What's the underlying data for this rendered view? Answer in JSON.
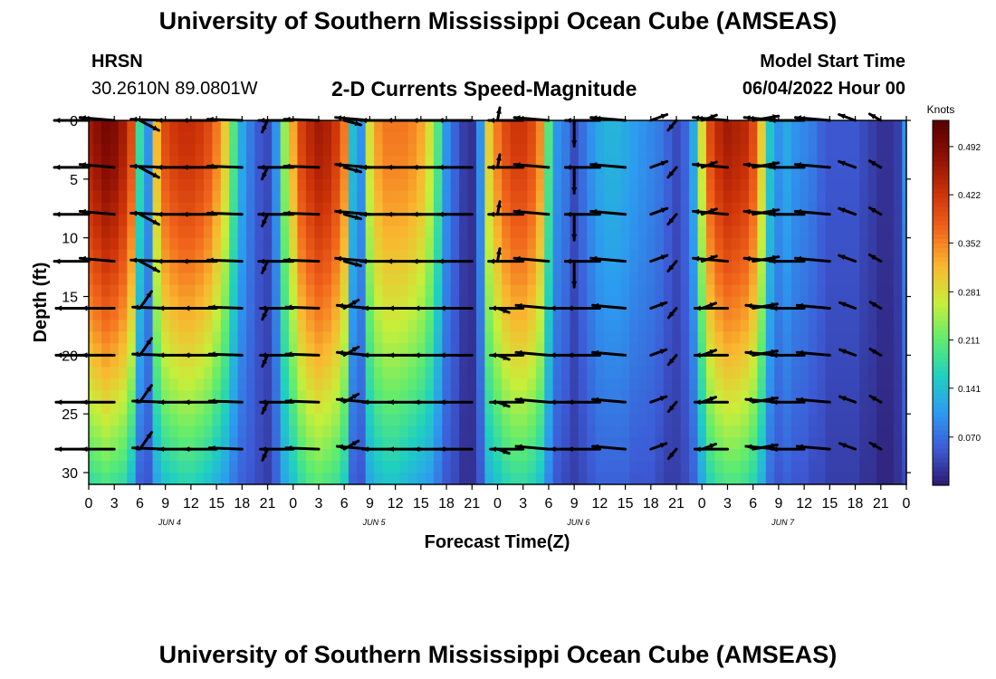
{
  "header": {
    "title": "University of Southern Mississippi Ocean Cube (AMSEAS)",
    "station": "HRSN",
    "coordinates": "30.2610N  89.0801W",
    "plot_title": "2-D Currents Speed-Magnitude",
    "model_start_label": "Model Start Time",
    "model_start_value": "06/04/2022 Hour 00"
  },
  "footer": {
    "title": "University of Southern Mississippi Ocean Cube (AMSEAS)"
  },
  "colors": {
    "arrow": "#000000",
    "axis": "#000000",
    "colormap": [
      "#2e1a6e",
      "#3d5bd6",
      "#2d9bf0",
      "#1fd0c0",
      "#60ec6e",
      "#c8ee3a",
      "#f9b830",
      "#f2661c",
      "#cc3208",
      "#8e1004",
      "#550000"
    ]
  },
  "chart_data": {
    "type": "heatmap",
    "xlabel": "Forecast Time(Z)",
    "ylabel": "Depth (ft)",
    "xlim": [
      0,
      96
    ],
    "ylim": [
      31,
      0
    ],
    "x_tick_labels": [
      "0",
      "3",
      "6",
      "9",
      "12",
      "15",
      "18",
      "21",
      "0",
      "3",
      "6",
      "9",
      "12",
      "15",
      "18",
      "21",
      "0",
      "3",
      "6",
      "9",
      "12",
      "15",
      "18",
      "21",
      "0",
      "3",
      "6",
      "9",
      "12",
      "15",
      "18",
      "21",
      "0"
    ],
    "day_labels": [
      "JUN 4",
      "JUN 5",
      "JUN 6",
      "JUN 7"
    ],
    "y_ticks": [
      0,
      5,
      10,
      15,
      20,
      25,
      30
    ],
    "y_tick_labels": [
      "0",
      "5",
      "10",
      "15",
      "20",
      "25",
      "30"
    ],
    "colorbar": {
      "title": "Knots",
      "ticks": [
        0.07,
        0.141,
        0.211,
        0.281,
        0.352,
        0.422,
        0.492
      ],
      "tick_labels": [
        "0.070",
        "0.141",
        "0.211",
        "0.281",
        "0.352",
        "0.422",
        "0.492"
      ],
      "range": [
        0.0,
        0.53
      ]
    },
    "speed_profile_hours": [
      0,
      1,
      2,
      3,
      4,
      5,
      6,
      7,
      8,
      9,
      10,
      11,
      12,
      13,
      14,
      15,
      16,
      17,
      18,
      19,
      20,
      21,
      22,
      23,
      24,
      25,
      26,
      27,
      28,
      29,
      30,
      31,
      32,
      33,
      34,
      35,
      36,
      37,
      38,
      39,
      40,
      41,
      42,
      43,
      44,
      45,
      46,
      47,
      48,
      49,
      50,
      51,
      52,
      53,
      54,
      55,
      56,
      57,
      58,
      59,
      60,
      61,
      62,
      63,
      64,
      65,
      66,
      67,
      68,
      69,
      70,
      71,
      72,
      73,
      74,
      75,
      76,
      77,
      78,
      79,
      80,
      81,
      82,
      83,
      84,
      85,
      86,
      87,
      88,
      89,
      90,
      91,
      92,
      93,
      94,
      95,
      96
    ],
    "speed_surface_knots": [
      0.46,
      0.48,
      0.5,
      0.49,
      0.46,
      0.4,
      0.18,
      0.1,
      0.32,
      0.4,
      0.42,
      0.43,
      0.43,
      0.42,
      0.4,
      0.36,
      0.3,
      0.2,
      0.12,
      0.08,
      0.05,
      0.04,
      0.1,
      0.24,
      0.33,
      0.41,
      0.44,
      0.46,
      0.45,
      0.42,
      0.36,
      0.14,
      0.1,
      0.28,
      0.34,
      0.36,
      0.36,
      0.36,
      0.35,
      0.33,
      0.28,
      0.2,
      0.1,
      0.06,
      0.03,
      0.02,
      0.1,
      0.3,
      0.36,
      0.4,
      0.42,
      0.42,
      0.4,
      0.35,
      0.2,
      0.1,
      0.08,
      0.04,
      0.07,
      0.1,
      0.12,
      0.13,
      0.13,
      0.12,
      0.11,
      0.1,
      0.09,
      0.08,
      0.06,
      0.04,
      0.06,
      0.12,
      0.28,
      0.4,
      0.44,
      0.46,
      0.45,
      0.44,
      0.4,
      0.3,
      0.15,
      0.1,
      0.12,
      0.1,
      0.09,
      0.08,
      0.06,
      0.05,
      0.05,
      0.05,
      0.05,
      0.04,
      0.03,
      0.02,
      0.02,
      0.03,
      0.1
    ],
    "speed_bottom_knots": [
      0.18,
      0.19,
      0.2,
      0.19,
      0.18,
      0.14,
      0.06,
      0.05,
      0.12,
      0.15,
      0.16,
      0.17,
      0.17,
      0.16,
      0.15,
      0.13,
      0.11,
      0.08,
      0.06,
      0.05,
      0.04,
      0.03,
      0.06,
      0.12,
      0.15,
      0.18,
      0.2,
      0.21,
      0.2,
      0.19,
      0.16,
      0.06,
      0.05,
      0.12,
      0.14,
      0.15,
      0.15,
      0.14,
      0.13,
      0.12,
      0.11,
      0.08,
      0.05,
      0.04,
      0.02,
      0.02,
      0.05,
      0.13,
      0.15,
      0.17,
      0.18,
      0.18,
      0.17,
      0.15,
      0.09,
      0.05,
      0.04,
      0.03,
      0.04,
      0.05,
      0.06,
      0.06,
      0.06,
      0.06,
      0.05,
      0.05,
      0.05,
      0.04,
      0.03,
      0.03,
      0.04,
      0.06,
      0.12,
      0.17,
      0.19,
      0.2,
      0.2,
      0.19,
      0.17,
      0.13,
      0.07,
      0.05,
      0.06,
      0.05,
      0.05,
      0.04,
      0.04,
      0.03,
      0.03,
      0.03,
      0.03,
      0.02,
      0.02,
      0.01,
      0.01,
      0.02,
      0.04
    ],
    "vector_depths_ft": [
      0,
      4,
      8,
      12,
      16,
      20,
      24,
      28
    ],
    "vector_hours": [
      0,
      3,
      6,
      9,
      12,
      15,
      18,
      21,
      24,
      27,
      30,
      33,
      36,
      39,
      42,
      45,
      48,
      51,
      54,
      57,
      60,
      63,
      66,
      69,
      72,
      75,
      78,
      81,
      84,
      87,
      90,
      93
    ],
    "vector_direction_deg_surface": [
      270,
      275,
      118,
      272,
      270,
      270,
      272,
      205,
      270,
      272,
      105,
      275,
      270,
      270,
      270,
      270,
      10,
      270,
      275,
      180,
      270,
      275,
      70,
      220,
      70,
      275,
      80,
      275,
      270,
      275,
      290,
      300
    ],
    "vector_direction_deg_deep": [
      270,
      270,
      35,
      272,
      270,
      270,
      272,
      205,
      270,
      272,
      60,
      275,
      270,
      270,
      270,
      270,
      110,
      270,
      275,
      270,
      270,
      275,
      70,
      220,
      70,
      270,
      80,
      275,
      270,
      275,
      290,
      300
    ],
    "vector_length_knots": [
      0.4,
      0.4,
      0.25,
      0.4,
      0.4,
      0.4,
      0.4,
      0.15,
      0.4,
      0.4,
      0.2,
      0.4,
      0.4,
      0.4,
      0.4,
      0.4,
      0.15,
      0.4,
      0.4,
      0.3,
      0.4,
      0.4,
      0.2,
      0.15,
      0.18,
      0.4,
      0.3,
      0.4,
      0.4,
      0.4,
      0.2,
      0.15
    ]
  }
}
